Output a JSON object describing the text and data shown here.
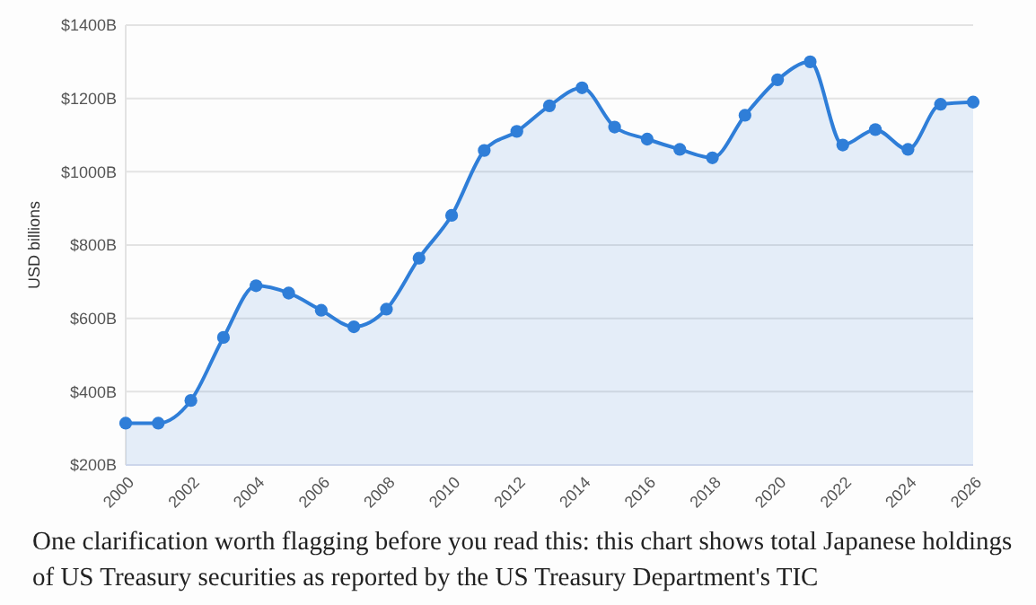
{
  "chart_data": {
    "type": "area",
    "ylabel": "USD billions",
    "x": [
      2000,
      2001,
      2002,
      2003,
      2004,
      2005,
      2006,
      2007,
      2008,
      2009,
      2010,
      2011,
      2012,
      2013,
      2014,
      2015,
      2016,
      2017,
      2018,
      2019,
      2020,
      2021,
      2022,
      2023,
      2024,
      2025,
      2026
    ],
    "series": [
      {
        "color": "#2f7ed8",
        "values": [
          314,
          314,
          376,
          548,
          689,
          669,
          622,
          577,
          625,
          764,
          881,
          1058,
          1110,
          1180,
          1229,
          1122,
          1089,
          1061,
          1038,
          1154,
          1251,
          1300,
          1073,
          1115,
          1061,
          1184,
          1190
        ]
      }
    ],
    "xlim": [
      2000,
      2026
    ],
    "xticks": [
      2000,
      2002,
      2004,
      2006,
      2008,
      2010,
      2012,
      2014,
      2016,
      2018,
      2020,
      2022,
      2024,
      2026
    ],
    "ylim": [
      200,
      1400
    ],
    "yticks": [
      {
        "value": 200,
        "label": "$200B"
      },
      {
        "value": 400,
        "label": "$400B"
      },
      {
        "value": 600,
        "label": "$600B"
      },
      {
        "value": 800,
        "label": "$800B"
      },
      {
        "value": 1000,
        "label": "$1000B"
      },
      {
        "value": 1200,
        "label": "$1200B"
      },
      {
        "value": 1400,
        "label": "$1400B"
      }
    ],
    "grid": "y",
    "marker": "circle",
    "annotations": [
      "One clarification worth flagging before you read this: this chart shows total Japanese holdings of US Treasury securities as reported by the US Treasury Department's TIC"
    ]
  }
}
